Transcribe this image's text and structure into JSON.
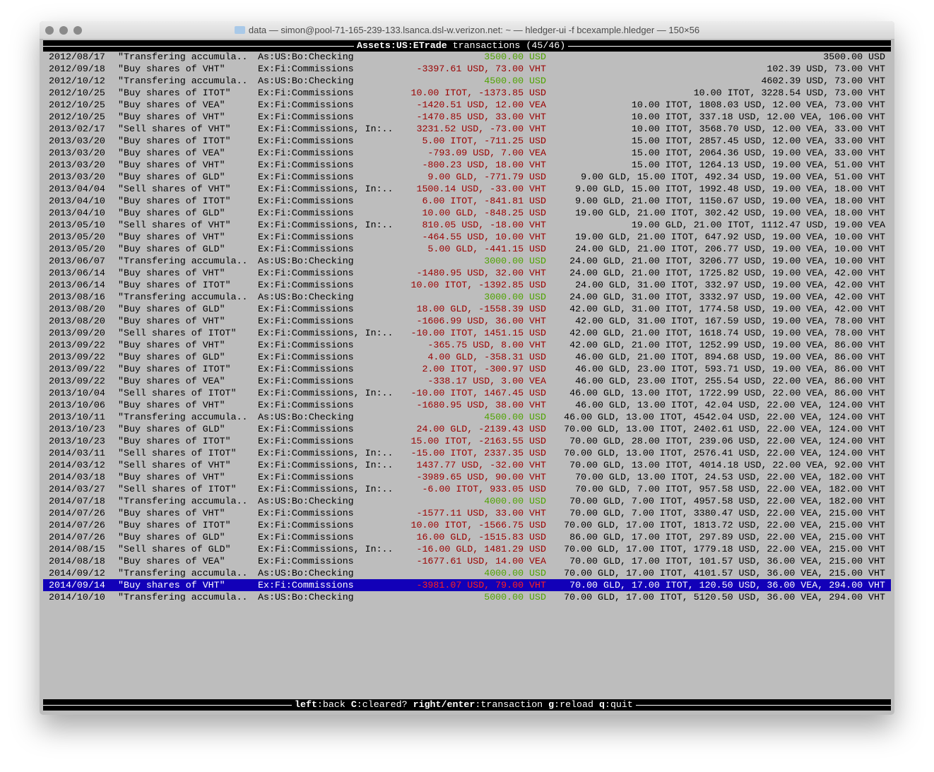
{
  "window": {
    "title": "data — simon@pool-71-165-239-133.lsanca.dsl-w.verizon.net: ~ — hledger-ui -f bcexample.hledger — 150×56"
  },
  "header": {
    "account": "Assets:US:ETrade",
    "label": "transactions",
    "position": "(45/46)"
  },
  "colors": {
    "negative": "#9a0000",
    "positive": "#4fa300",
    "selection": "#1200b8"
  },
  "selected_index": 44,
  "rows": [
    [
      "2012/08/17",
      "\"Transfering accumula..",
      "As:US:Bo:Checking",
      "3500.00 USD",
      "3500.00 USD",
      true
    ],
    [
      "2012/09/18",
      "\"Buy shares of VHT\"",
      "Ex:Fi:Commissions",
      "-3397.61 USD, 73.00 VHT",
      "102.39 USD, 73.00 VHT",
      false
    ],
    [
      "2012/10/12",
      "\"Transfering accumula..",
      "As:US:Bo:Checking",
      "4500.00 USD",
      "4602.39 USD, 73.00 VHT",
      true
    ],
    [
      "2012/10/25",
      "\"Buy shares of ITOT\"",
      "Ex:Fi:Commissions",
      "10.00 ITOT, -1373.85 USD",
      "10.00 ITOT, 3228.54 USD, 73.00 VHT",
      false
    ],
    [
      "2012/10/25",
      "\"Buy shares of VEA\"",
      "Ex:Fi:Commissions",
      "-1420.51 USD, 12.00 VEA",
      "10.00 ITOT, 1808.03 USD, 12.00 VEA, 73.00 VHT",
      false
    ],
    [
      "2012/10/25",
      "\"Buy shares of VHT\"",
      "Ex:Fi:Commissions",
      "-1470.85 USD, 33.00 VHT",
      "10.00 ITOT, 337.18 USD, 12.00 VEA, 106.00 VHT",
      false
    ],
    [
      "2013/02/17",
      "\"Sell shares of VHT\"",
      "Ex:Fi:Commissions, In:..",
      "3231.52 USD, -73.00 VHT",
      "10.00 ITOT, 3568.70 USD, 12.00 VEA, 33.00 VHT",
      false
    ],
    [
      "2013/03/20",
      "\"Buy shares of ITOT\"",
      "Ex:Fi:Commissions",
      "5.00 ITOT, -711.25 USD",
      "15.00 ITOT, 2857.45 USD, 12.00 VEA, 33.00 VHT",
      false
    ],
    [
      "2013/03/20",
      "\"Buy shares of VEA\"",
      "Ex:Fi:Commissions",
      "-793.09 USD, 7.00 VEA",
      "15.00 ITOT, 2064.36 USD, 19.00 VEA, 33.00 VHT",
      false
    ],
    [
      "2013/03/20",
      "\"Buy shares of VHT\"",
      "Ex:Fi:Commissions",
      "-800.23 USD, 18.00 VHT",
      "15.00 ITOT, 1264.13 USD, 19.00 VEA, 51.00 VHT",
      false
    ],
    [
      "2013/03/20",
      "\"Buy shares of GLD\"",
      "Ex:Fi:Commissions",
      "9.00 GLD, -771.79 USD",
      "9.00 GLD, 15.00 ITOT, 492.34 USD, 19.00 VEA, 51.00 VHT",
      false
    ],
    [
      "2013/04/04",
      "\"Sell shares of VHT\"",
      "Ex:Fi:Commissions, In:..",
      "1500.14 USD, -33.00 VHT",
      "9.00 GLD, 15.00 ITOT, 1992.48 USD, 19.00 VEA, 18.00 VHT",
      false
    ],
    [
      "2013/04/10",
      "\"Buy shares of ITOT\"",
      "Ex:Fi:Commissions",
      "6.00 ITOT, -841.81 USD",
      "9.00 GLD, 21.00 ITOT, 1150.67 USD, 19.00 VEA, 18.00 VHT",
      false
    ],
    [
      "2013/04/10",
      "\"Buy shares of GLD\"",
      "Ex:Fi:Commissions",
      "10.00 GLD, -848.25 USD",
      "19.00 GLD, 21.00 ITOT, 302.42 USD, 19.00 VEA, 18.00 VHT",
      false
    ],
    [
      "2013/05/10",
      "\"Sell shares of VHT\"",
      "Ex:Fi:Commissions, In:..",
      "810.05 USD, -18.00 VHT",
      "19.00 GLD, 21.00 ITOT, 1112.47 USD, 19.00 VEA",
      false
    ],
    [
      "2013/05/20",
      "\"Buy shares of VHT\"",
      "Ex:Fi:Commissions",
      "-464.55 USD, 10.00 VHT",
      "19.00 GLD, 21.00 ITOT, 647.92 USD, 19.00 VEA, 10.00 VHT",
      false
    ],
    [
      "2013/05/20",
      "\"Buy shares of GLD\"",
      "Ex:Fi:Commissions",
      "5.00 GLD, -441.15 USD",
      "24.00 GLD, 21.00 ITOT, 206.77 USD, 19.00 VEA, 10.00 VHT",
      false
    ],
    [
      "2013/06/07",
      "\"Transfering accumula..",
      "As:US:Bo:Checking",
      "3000.00 USD",
      "24.00 GLD, 21.00 ITOT, 3206.77 USD, 19.00 VEA, 10.00 VHT",
      true
    ],
    [
      "2013/06/14",
      "\"Buy shares of VHT\"",
      "Ex:Fi:Commissions",
      "-1480.95 USD, 32.00 VHT",
      "24.00 GLD, 21.00 ITOT, 1725.82 USD, 19.00 VEA, 42.00 VHT",
      false
    ],
    [
      "2013/06/14",
      "\"Buy shares of ITOT\"",
      "Ex:Fi:Commissions",
      "10.00 ITOT, -1392.85 USD",
      "24.00 GLD, 31.00 ITOT, 332.97 USD, 19.00 VEA, 42.00 VHT",
      false
    ],
    [
      "2013/08/16",
      "\"Transfering accumula..",
      "As:US:Bo:Checking",
      "3000.00 USD",
      "24.00 GLD, 31.00 ITOT, 3332.97 USD, 19.00 VEA, 42.00 VHT",
      true
    ],
    [
      "2013/08/20",
      "\"Buy shares of GLD\"",
      "Ex:Fi:Commissions",
      "18.00 GLD, -1558.39 USD",
      "42.00 GLD, 31.00 ITOT, 1774.58 USD, 19.00 VEA, 42.00 VHT",
      false
    ],
    [
      "2013/08/20",
      "\"Buy shares of VHT\"",
      "Ex:Fi:Commissions",
      "-1606.99 USD, 36.00 VHT",
      "42.00 GLD, 31.00 ITOT, 167.59 USD, 19.00 VEA, 78.00 VHT",
      false
    ],
    [
      "2013/09/20",
      "\"Sell shares of ITOT\"",
      "Ex:Fi:Commissions, In:..",
      "-10.00 ITOT, 1451.15 USD",
      "42.00 GLD, 21.00 ITOT, 1618.74 USD, 19.00 VEA, 78.00 VHT",
      false
    ],
    [
      "2013/09/22",
      "\"Buy shares of VHT\"",
      "Ex:Fi:Commissions",
      "-365.75 USD, 8.00 VHT",
      "42.00 GLD, 21.00 ITOT, 1252.99 USD, 19.00 VEA, 86.00 VHT",
      false
    ],
    [
      "2013/09/22",
      "\"Buy shares of GLD\"",
      "Ex:Fi:Commissions",
      "4.00 GLD, -358.31 USD",
      "46.00 GLD, 21.00 ITOT, 894.68 USD, 19.00 VEA, 86.00 VHT",
      false
    ],
    [
      "2013/09/22",
      "\"Buy shares of ITOT\"",
      "Ex:Fi:Commissions",
      "2.00 ITOT, -300.97 USD",
      "46.00 GLD, 23.00 ITOT, 593.71 USD, 19.00 VEA, 86.00 VHT",
      false
    ],
    [
      "2013/09/22",
      "\"Buy shares of VEA\"",
      "Ex:Fi:Commissions",
      "-338.17 USD, 3.00 VEA",
      "46.00 GLD, 23.00 ITOT, 255.54 USD, 22.00 VEA, 86.00 VHT",
      false
    ],
    [
      "2013/10/04",
      "\"Sell shares of ITOT\"",
      "Ex:Fi:Commissions, In:..",
      "-10.00 ITOT, 1467.45 USD",
      "46.00 GLD, 13.00 ITOT, 1722.99 USD, 22.00 VEA, 86.00 VHT",
      false
    ],
    [
      "2013/10/06",
      "\"Buy shares of VHT\"",
      "Ex:Fi:Commissions",
      "-1680.95 USD, 38.00 VHT",
      "46.00 GLD, 13.00 ITOT, 42.04 USD, 22.00 VEA, 124.00 VHT",
      false
    ],
    [
      "2013/10/11",
      "\"Transfering accumula..",
      "As:US:Bo:Checking",
      "4500.00 USD",
      "46.00 GLD, 13.00 ITOT, 4542.04 USD, 22.00 VEA, 124.00 VHT",
      true
    ],
    [
      "2013/10/23",
      "\"Buy shares of GLD\"",
      "Ex:Fi:Commissions",
      "24.00 GLD, -2139.43 USD",
      "70.00 GLD, 13.00 ITOT, 2402.61 USD, 22.00 VEA, 124.00 VHT",
      false
    ],
    [
      "2013/10/23",
      "\"Buy shares of ITOT\"",
      "Ex:Fi:Commissions",
      "15.00 ITOT, -2163.55 USD",
      "70.00 GLD, 28.00 ITOT, 239.06 USD, 22.00 VEA, 124.00 VHT",
      false
    ],
    [
      "2014/03/11",
      "\"Sell shares of ITOT\"",
      "Ex:Fi:Commissions, In:..",
      "-15.00 ITOT, 2337.35 USD",
      "70.00 GLD, 13.00 ITOT, 2576.41 USD, 22.00 VEA, 124.00 VHT",
      false
    ],
    [
      "2014/03/12",
      "\"Sell shares of VHT\"",
      "Ex:Fi:Commissions, In:..",
      "1437.77 USD, -32.00 VHT",
      "70.00 GLD, 13.00 ITOT, 4014.18 USD, 22.00 VEA, 92.00 VHT",
      false
    ],
    [
      "2014/03/18",
      "\"Buy shares of VHT\"",
      "Ex:Fi:Commissions",
      "-3989.65 USD, 90.00 VHT",
      "70.00 GLD, 13.00 ITOT, 24.53 USD, 22.00 VEA, 182.00 VHT",
      false
    ],
    [
      "2014/03/27",
      "\"Sell shares of ITOT\"",
      "Ex:Fi:Commissions, In:..",
      "-6.00 ITOT, 933.05 USD",
      "70.00 GLD, 7.00 ITOT, 957.58 USD, 22.00 VEA, 182.00 VHT",
      false
    ],
    [
      "2014/07/18",
      "\"Transfering accumula..",
      "As:US:Bo:Checking",
      "4000.00 USD",
      "70.00 GLD, 7.00 ITOT, 4957.58 USD, 22.00 VEA, 182.00 VHT",
      true
    ],
    [
      "2014/07/26",
      "\"Buy shares of VHT\"",
      "Ex:Fi:Commissions",
      "-1577.11 USD, 33.00 VHT",
      "70.00 GLD, 7.00 ITOT, 3380.47 USD, 22.00 VEA, 215.00 VHT",
      false
    ],
    [
      "2014/07/26",
      "\"Buy shares of ITOT\"",
      "Ex:Fi:Commissions",
      "10.00 ITOT, -1566.75 USD",
      "70.00 GLD, 17.00 ITOT, 1813.72 USD, 22.00 VEA, 215.00 VHT",
      false
    ],
    [
      "2014/07/26",
      "\"Buy shares of GLD\"",
      "Ex:Fi:Commissions",
      "16.00 GLD, -1515.83 USD",
      "86.00 GLD, 17.00 ITOT, 297.89 USD, 22.00 VEA, 215.00 VHT",
      false
    ],
    [
      "2014/08/15",
      "\"Sell shares of GLD\"",
      "Ex:Fi:Commissions, In:..",
      "-16.00 GLD, 1481.29 USD",
      "70.00 GLD, 17.00 ITOT, 1779.18 USD, 22.00 VEA, 215.00 VHT",
      false
    ],
    [
      "2014/08/18",
      "\"Buy shares of VEA\"",
      "Ex:Fi:Commissions",
      "-1677.61 USD, 14.00 VEA",
      "70.00 GLD, 17.00 ITOT, 101.57 USD, 36.00 VEA, 215.00 VHT",
      false
    ],
    [
      "2014/09/12",
      "\"Transfering accumula..",
      "As:US:Bo:Checking",
      "4000.00 USD",
      "70.00 GLD, 17.00 ITOT, 4101.57 USD, 36.00 VEA, 215.00 VHT",
      true
    ],
    [
      "2014/09/14",
      "\"Buy shares of VHT\"",
      "Ex:Fi:Commissions",
      "-3981.07 USD, 79.00 VHT",
      "70.00 GLD, 17.00 ITOT, 120.50 USD, 36.00 VEA, 294.00 VHT",
      false
    ],
    [
      "2014/10/10",
      "\"Transfering accumula..",
      "As:US:Bo:Checking",
      "5000.00 USD",
      "70.00 GLD, 17.00 ITOT, 5120.50 USD, 36.00 VEA, 294.00 VHT",
      true
    ]
  ],
  "footer": {
    "keys": [
      {
        "key": "left",
        "action": "back"
      },
      {
        "key": "C",
        "action": "cleared?"
      },
      {
        "key": "right/enter",
        "action": "transaction"
      },
      {
        "key": "g",
        "action": "reload"
      },
      {
        "key": "q",
        "action": "quit"
      }
    ]
  }
}
